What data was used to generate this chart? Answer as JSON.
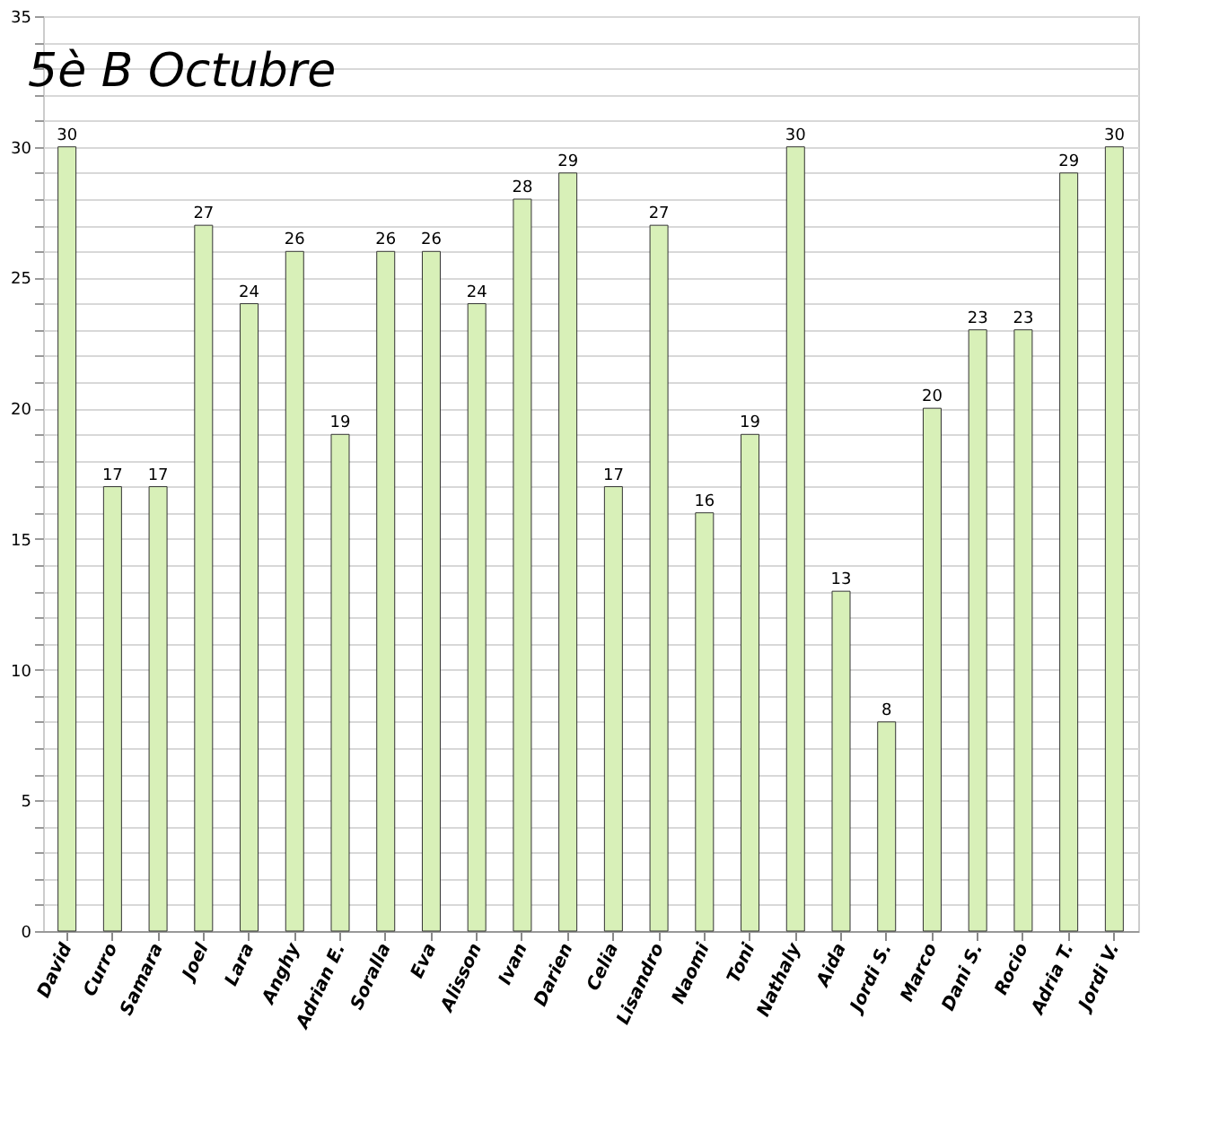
{
  "chart_data": {
    "type": "bar",
    "title": "5è B Octubre",
    "categories": [
      "David",
      "Curro",
      "Samara",
      "Joel",
      "Lara",
      "Anghy",
      "Adrian E.",
      "Soralla",
      "Eva",
      "Alisson",
      "Ivan",
      "Darien",
      "Celia",
      "Lisandro",
      "Naomi",
      "Toni",
      "Nathaly",
      "Aida",
      "Jordi S.",
      "Marco",
      "Dani S.",
      "Rocio",
      "Adria T.",
      "Jordi V."
    ],
    "values": [
      30,
      17,
      17,
      27,
      24,
      26,
      19,
      26,
      26,
      24,
      28,
      29,
      17,
      27,
      16,
      19,
      30,
      13,
      8,
      20,
      23,
      23,
      29,
      30
    ],
    "color": "#d8f0b8",
    "ylim": [
      0,
      35
    ],
    "yticks": [
      0,
      {
        "value": 1,
        "label": null
      },
      {
        "value": 2,
        "label": null
      },
      {
        "value": 3,
        "label": null
      },
      {
        "value": 4,
        "label": null
      },
      5,
      {
        "value": 6,
        "label": null
      },
      {
        "value": 7,
        "label": null
      },
      {
        "value": 8,
        "label": null
      },
      {
        "value": 9,
        "label": null
      },
      10,
      {
        "value": 11,
        "label": null
      },
      {
        "value": 12,
        "label": null
      },
      {
        "value": 13,
        "label": null
      },
      {
        "value": 14,
        "label": null
      },
      15,
      {
        "value": 16,
        "label": null
      },
      {
        "value": 17,
        "label": null
      },
      {
        "value": 18,
        "label": null
      },
      {
        "value": 19,
        "label": null
      },
      20,
      {
        "value": 21,
        "label": null
      },
      {
        "value": 22,
        "label": null
      },
      {
        "value": 23,
        "label": null
      },
      {
        "value": 24,
        "label": null
      },
      25,
      {
        "value": 26,
        "label": null
      },
      {
        "value": 27,
        "label": null
      },
      {
        "value": 28,
        "label": null
      },
      {
        "value": 29,
        "label": null
      },
      30,
      {
        "value": 31,
        "label": null
      },
      {
        "value": 32,
        "label": null
      },
      {
        "value": 33,
        "label": null
      },
      {
        "value": 34,
        "label": null
      },
      35
    ],
    "grid": "y",
    "data_labels": true
  }
}
